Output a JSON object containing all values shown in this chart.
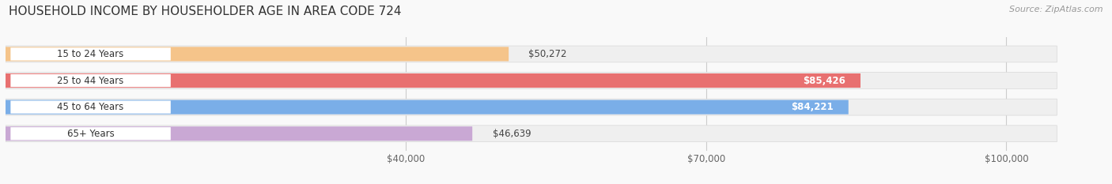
{
  "title": "HOUSEHOLD INCOME BY HOUSEHOLDER AGE IN AREA CODE 724",
  "source": "Source: ZipAtlas.com",
  "categories": [
    "15 to 24 Years",
    "25 to 44 Years",
    "45 to 64 Years",
    "65+ Years"
  ],
  "values": [
    50272,
    85426,
    84221,
    46639
  ],
  "bar_colors": [
    "#f5c eighteen8a",
    "#e87070",
    "#7aaee8",
    "#c9a8d4"
  ],
  "bar_colors_fixed": [
    "#f5c48a",
    "#e87070",
    "#7aaee8",
    "#c9a8d4"
  ],
  "label_colors": [
    "#333333",
    "#ffffff",
    "#ffffff",
    "#333333"
  ],
  "bar_bg_color": "#efefef",
  "background_color": "#f9f9f9",
  "xmin": 0,
  "xmax": 110000,
  "xticks": [
    40000,
    70000,
    100000
  ],
  "xtick_labels": [
    "$40,000",
    "$70,000",
    "$100,000"
  ],
  "value_labels": [
    "$50,272",
    "$85,426",
    "$84,221",
    "$46,639"
  ],
  "bar_height": 0.62,
  "title_fontsize": 11,
  "source_fontsize": 8,
  "label_fontsize": 8.5,
  "tick_fontsize": 8.5
}
